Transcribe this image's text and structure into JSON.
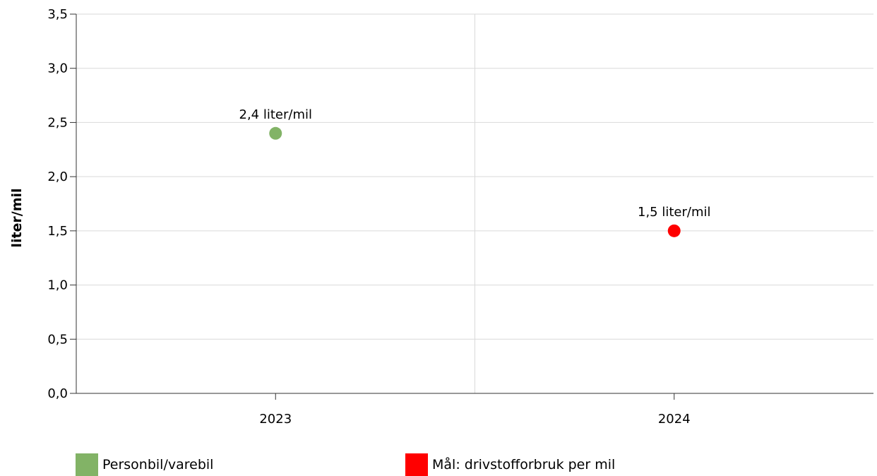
{
  "chart_data": {
    "type": "scatter",
    "ylabel": "liter/mil",
    "xlabel": "",
    "title": "",
    "ylim": [
      0,
      3.5
    ],
    "y_ticks": [
      "0,0",
      "0,5",
      "1,0",
      "1,5",
      "2,0",
      "2,5",
      "3,0",
      "3,5"
    ],
    "y_tick_values": [
      0,
      0.5,
      1.0,
      1.5,
      2.0,
      2.5,
      3.0,
      3.5
    ],
    "categories": [
      "2023",
      "2024"
    ],
    "grid": true,
    "legend_position": "bottom",
    "series": [
      {
        "name": "Personbil/varebil",
        "color": "#82b366",
        "points": [
          {
            "x": "2023",
            "y": 2.4,
            "label": "2,4 liter/mil"
          }
        ]
      },
      {
        "name": "Mål: drivstofforbruk per mil",
        "color": "#ff0000",
        "points": [
          {
            "x": "2024",
            "y": 1.5,
            "label": "1,5 liter/mil"
          }
        ]
      }
    ]
  }
}
